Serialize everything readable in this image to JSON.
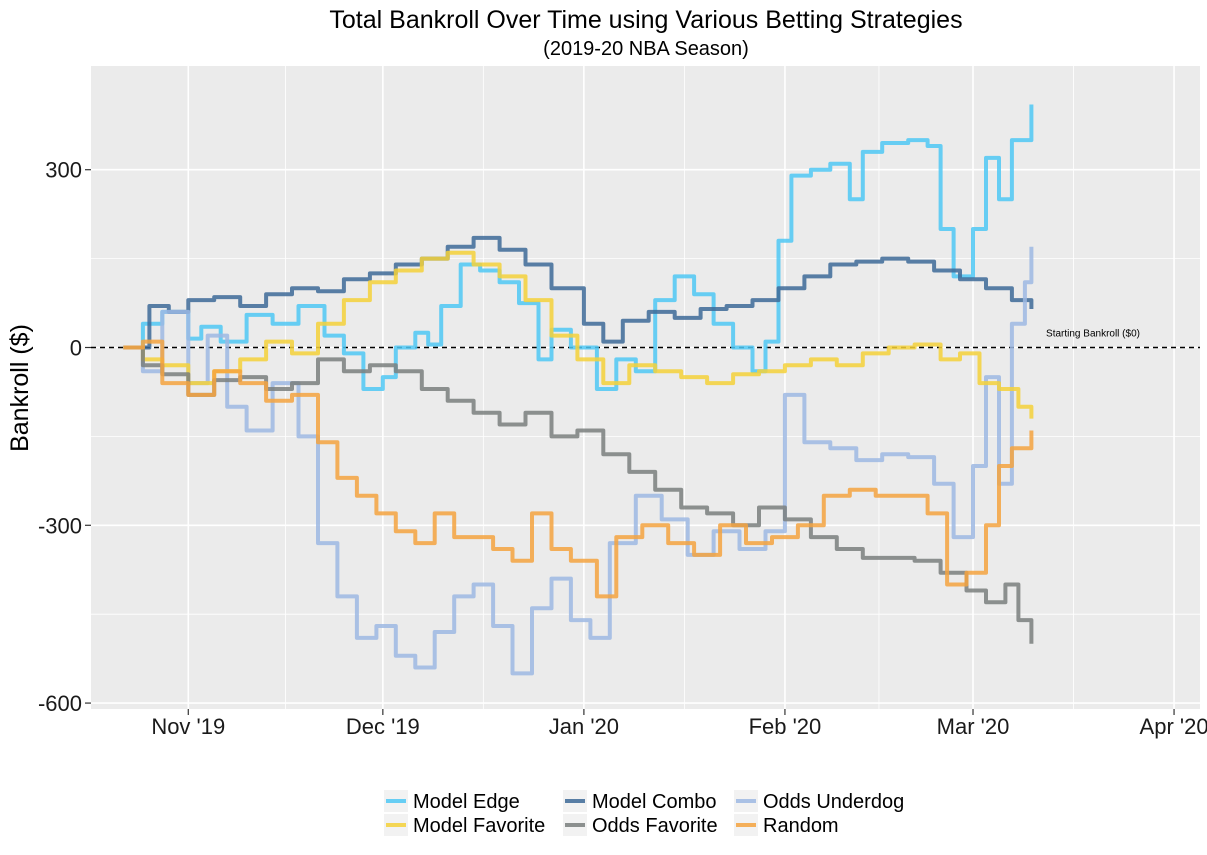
{
  "chart_data": {
    "type": "line",
    "title": "Total Bankroll Over Time using Various Betting Strategies",
    "subtitle": "(2019-20 NBA Season)",
    "xlabel": "",
    "ylabel": "Bankroll ($)",
    "x_range": [
      "2019-10-17",
      "2020-04-05"
    ],
    "ylim": [
      -610,
      475
    ],
    "x_ticks": [
      {
        "date": "2019-11-01",
        "label": "Nov '19"
      },
      {
        "date": "2019-12-01",
        "label": "Dec '19"
      },
      {
        "date": "2020-01-01",
        "label": "Jan '20"
      },
      {
        "date": "2020-02-01",
        "label": "Feb '20"
      },
      {
        "date": "2020-03-01",
        "label": "Mar '20"
      },
      {
        "date": "2020-04-01",
        "label": "Apr '20"
      }
    ],
    "y_ticks": [
      300,
      0,
      -300,
      -600
    ],
    "y_tick_labels": [
      "300",
      "0",
      "-300",
      "-600"
    ],
    "grid": true,
    "reference_line": {
      "y": 0,
      "label": "Starting Bankroll ($0)"
    },
    "legend_position": "bottom",
    "series": [
      {
        "name": "Model Edge",
        "color": "#4FC8F5",
        "points": [
          [
            "2019-10-22",
            0
          ],
          [
            "2019-10-25",
            40
          ],
          [
            "2019-10-28",
            60
          ],
          [
            "2019-11-01",
            15
          ],
          [
            "2019-11-03",
            35
          ],
          [
            "2019-11-06",
            10
          ],
          [
            "2019-11-10",
            55
          ],
          [
            "2019-11-14",
            40
          ],
          [
            "2019-11-18",
            70
          ],
          [
            "2019-11-22",
            20
          ],
          [
            "2019-11-25",
            -10
          ],
          [
            "2019-11-28",
            -70
          ],
          [
            "2019-12-01",
            -50
          ],
          [
            "2019-12-03",
            0
          ],
          [
            "2019-12-06",
            25
          ],
          [
            "2019-12-08",
            5
          ],
          [
            "2019-12-10",
            70
          ],
          [
            "2019-12-13",
            140
          ],
          [
            "2019-12-16",
            130
          ],
          [
            "2019-12-19",
            110
          ],
          [
            "2019-12-22",
            75
          ],
          [
            "2019-12-25",
            -20
          ],
          [
            "2019-12-27",
            30
          ],
          [
            "2019-12-30",
            0
          ],
          [
            "2020-01-03",
            -70
          ],
          [
            "2020-01-06",
            -20
          ],
          [
            "2020-01-09",
            -40
          ],
          [
            "2020-01-12",
            80
          ],
          [
            "2020-01-15",
            120
          ],
          [
            "2020-01-18",
            90
          ],
          [
            "2020-01-21",
            40
          ],
          [
            "2020-01-24",
            0
          ],
          [
            "2020-01-27",
            -40
          ],
          [
            "2020-01-29",
            10
          ],
          [
            "2020-01-31",
            180
          ],
          [
            "2020-02-02",
            290
          ],
          [
            "2020-02-05",
            300
          ],
          [
            "2020-02-08",
            310
          ],
          [
            "2020-02-11",
            250
          ],
          [
            "2020-02-13",
            330
          ],
          [
            "2020-02-16",
            345
          ],
          [
            "2020-02-20",
            350
          ],
          [
            "2020-02-23",
            340
          ],
          [
            "2020-02-25",
            200
          ],
          [
            "2020-02-27",
            120
          ],
          [
            "2020-03-01",
            200
          ],
          [
            "2020-03-03",
            320
          ],
          [
            "2020-03-05",
            250
          ],
          [
            "2020-03-07",
            350
          ],
          [
            "2020-03-10",
            410
          ]
        ]
      },
      {
        "name": "Model Combo",
        "color": "#3D6A98",
        "points": [
          [
            "2019-10-22",
            0
          ],
          [
            "2019-10-26",
            70
          ],
          [
            "2019-10-29",
            60
          ],
          [
            "2019-11-01",
            80
          ],
          [
            "2019-11-05",
            85
          ],
          [
            "2019-11-09",
            70
          ],
          [
            "2019-11-13",
            90
          ],
          [
            "2019-11-17",
            100
          ],
          [
            "2019-11-21",
            95
          ],
          [
            "2019-11-25",
            115
          ],
          [
            "2019-11-29",
            125
          ],
          [
            "2019-12-03",
            140
          ],
          [
            "2019-12-07",
            150
          ],
          [
            "2019-12-11",
            170
          ],
          [
            "2019-12-15",
            185
          ],
          [
            "2019-12-19",
            165
          ],
          [
            "2019-12-23",
            140
          ],
          [
            "2019-12-27",
            100
          ],
          [
            "2020-01-01",
            40
          ],
          [
            "2020-01-04",
            10
          ],
          [
            "2020-01-07",
            45
          ],
          [
            "2020-01-11",
            60
          ],
          [
            "2020-01-15",
            50
          ],
          [
            "2020-01-19",
            65
          ],
          [
            "2020-01-23",
            70
          ],
          [
            "2020-01-27",
            80
          ],
          [
            "2020-01-31",
            100
          ],
          [
            "2020-02-04",
            120
          ],
          [
            "2020-02-08",
            140
          ],
          [
            "2020-02-12",
            145
          ],
          [
            "2020-02-16",
            150
          ],
          [
            "2020-02-20",
            145
          ],
          [
            "2020-02-24",
            130
          ],
          [
            "2020-02-28",
            115
          ],
          [
            "2020-03-03",
            100
          ],
          [
            "2020-03-07",
            80
          ],
          [
            "2020-03-10",
            65
          ]
        ]
      },
      {
        "name": "Odds Underdog",
        "color": "#9DB9E3",
        "points": [
          [
            "2019-10-22",
            0
          ],
          [
            "2019-10-25",
            -40
          ],
          [
            "2019-10-28",
            60
          ],
          [
            "2019-11-01",
            -60
          ],
          [
            "2019-11-04",
            20
          ],
          [
            "2019-11-07",
            -100
          ],
          [
            "2019-11-10",
            -140
          ],
          [
            "2019-11-14",
            -60
          ],
          [
            "2019-11-18",
            -150
          ],
          [
            "2019-11-21",
            -330
          ],
          [
            "2019-11-24",
            -420
          ],
          [
            "2019-11-27",
            -490
          ],
          [
            "2019-11-30",
            -470
          ],
          [
            "2019-12-03",
            -520
          ],
          [
            "2019-12-06",
            -540
          ],
          [
            "2019-12-09",
            -480
          ],
          [
            "2019-12-12",
            -420
          ],
          [
            "2019-12-15",
            -400
          ],
          [
            "2019-12-18",
            -470
          ],
          [
            "2019-12-21",
            -550
          ],
          [
            "2019-12-24",
            -440
          ],
          [
            "2019-12-27",
            -390
          ],
          [
            "2019-12-30",
            -460
          ],
          [
            "2020-01-02",
            -490
          ],
          [
            "2020-01-05",
            -330
          ],
          [
            "2020-01-09",
            -250
          ],
          [
            "2020-01-13",
            -290
          ],
          [
            "2020-01-17",
            -350
          ],
          [
            "2020-01-21",
            -310
          ],
          [
            "2020-01-25",
            -340
          ],
          [
            "2020-01-29",
            -310
          ],
          [
            "2020-02-01",
            -80
          ],
          [
            "2020-02-04",
            -160
          ],
          [
            "2020-02-08",
            -170
          ],
          [
            "2020-02-12",
            -190
          ],
          [
            "2020-02-16",
            -180
          ],
          [
            "2020-02-20",
            -185
          ],
          [
            "2020-02-24",
            -230
          ],
          [
            "2020-02-27",
            -320
          ],
          [
            "2020-03-01",
            -200
          ],
          [
            "2020-03-03",
            -50
          ],
          [
            "2020-03-05",
            -230
          ],
          [
            "2020-03-07",
            40
          ],
          [
            "2020-03-09",
            110
          ],
          [
            "2020-03-10",
            170
          ]
        ]
      },
      {
        "name": "Model Favorite",
        "color": "#F5D13A",
        "points": [
          [
            "2019-10-22",
            0
          ],
          [
            "2019-10-25",
            -20
          ],
          [
            "2019-10-28",
            -30
          ],
          [
            "2019-11-01",
            -60
          ],
          [
            "2019-11-05",
            -40
          ],
          [
            "2019-11-09",
            -20
          ],
          [
            "2019-11-13",
            10
          ],
          [
            "2019-11-17",
            -10
          ],
          [
            "2019-11-21",
            40
          ],
          [
            "2019-11-25",
            80
          ],
          [
            "2019-11-29",
            110
          ],
          [
            "2019-12-03",
            130
          ],
          [
            "2019-12-07",
            150
          ],
          [
            "2019-12-11",
            160
          ],
          [
            "2019-12-15",
            140
          ],
          [
            "2019-12-19",
            120
          ],
          [
            "2019-12-23",
            80
          ],
          [
            "2019-12-27",
            20
          ],
          [
            "2019-12-31",
            -20
          ],
          [
            "2020-01-04",
            -60
          ],
          [
            "2020-01-08",
            -30
          ],
          [
            "2020-01-12",
            -40
          ],
          [
            "2020-01-16",
            -50
          ],
          [
            "2020-01-20",
            -60
          ],
          [
            "2020-01-24",
            -45
          ],
          [
            "2020-01-28",
            -40
          ],
          [
            "2020-02-01",
            -30
          ],
          [
            "2020-02-05",
            -20
          ],
          [
            "2020-02-09",
            -30
          ],
          [
            "2020-02-13",
            -10
          ],
          [
            "2020-02-17",
            0
          ],
          [
            "2020-02-21",
            5
          ],
          [
            "2020-02-25",
            -20
          ],
          [
            "2020-02-28",
            -10
          ],
          [
            "2020-03-02",
            -60
          ],
          [
            "2020-03-05",
            -70
          ],
          [
            "2020-03-08",
            -100
          ],
          [
            "2020-03-10",
            -120
          ]
        ]
      },
      {
        "name": "Odds Favorite",
        "color": "#7A7F7E",
        "points": [
          [
            "2019-10-22",
            0
          ],
          [
            "2019-10-25",
            -30
          ],
          [
            "2019-10-28",
            -45
          ],
          [
            "2019-11-01",
            -80
          ],
          [
            "2019-11-05",
            -55
          ],
          [
            "2019-11-09",
            -50
          ],
          [
            "2019-11-13",
            -70
          ],
          [
            "2019-11-17",
            -60
          ],
          [
            "2019-11-21",
            -20
          ],
          [
            "2019-11-25",
            -40
          ],
          [
            "2019-11-29",
            -30
          ],
          [
            "2019-12-03",
            -40
          ],
          [
            "2019-12-07",
            -70
          ],
          [
            "2019-12-11",
            -90
          ],
          [
            "2019-12-15",
            -110
          ],
          [
            "2019-12-19",
            -130
          ],
          [
            "2019-12-23",
            -110
          ],
          [
            "2019-12-27",
            -150
          ],
          [
            "2019-12-31",
            -140
          ],
          [
            "2020-01-04",
            -180
          ],
          [
            "2020-01-08",
            -210
          ],
          [
            "2020-01-12",
            -240
          ],
          [
            "2020-01-16",
            -270
          ],
          [
            "2020-01-20",
            -280
          ],
          [
            "2020-01-24",
            -300
          ],
          [
            "2020-01-28",
            -270
          ],
          [
            "2020-02-01",
            -290
          ],
          [
            "2020-02-05",
            -320
          ],
          [
            "2020-02-09",
            -340
          ],
          [
            "2020-02-13",
            -355
          ],
          [
            "2020-02-17",
            -355
          ],
          [
            "2020-02-21",
            -360
          ],
          [
            "2020-02-25",
            -380
          ],
          [
            "2020-02-29",
            -410
          ],
          [
            "2020-03-03",
            -430
          ],
          [
            "2020-03-06",
            -400
          ],
          [
            "2020-03-08",
            -460
          ],
          [
            "2020-03-10",
            -500
          ]
        ]
      },
      {
        "name": "Random",
        "color": "#F5A33F",
        "points": [
          [
            "2019-10-22",
            0
          ],
          [
            "2019-10-25",
            10
          ],
          [
            "2019-10-28",
            -60
          ],
          [
            "2019-11-01",
            -80
          ],
          [
            "2019-11-05",
            -40
          ],
          [
            "2019-11-09",
            -60
          ],
          [
            "2019-11-13",
            -90
          ],
          [
            "2019-11-17",
            -80
          ],
          [
            "2019-11-21",
            -160
          ],
          [
            "2019-11-24",
            -220
          ],
          [
            "2019-11-27",
            -250
          ],
          [
            "2019-11-30",
            -280
          ],
          [
            "2019-12-03",
            -310
          ],
          [
            "2019-12-06",
            -330
          ],
          [
            "2019-12-09",
            -280
          ],
          [
            "2019-12-12",
            -320
          ],
          [
            "2019-12-15",
            -320
          ],
          [
            "2019-12-18",
            -340
          ],
          [
            "2019-12-21",
            -360
          ],
          [
            "2019-12-24",
            -280
          ],
          [
            "2019-12-27",
            -340
          ],
          [
            "2019-12-30",
            -360
          ],
          [
            "2020-01-03",
            -420
          ],
          [
            "2020-01-06",
            -320
          ],
          [
            "2020-01-10",
            -300
          ],
          [
            "2020-01-14",
            -330
          ],
          [
            "2020-01-18",
            -350
          ],
          [
            "2020-01-22",
            -300
          ],
          [
            "2020-01-26",
            -330
          ],
          [
            "2020-01-30",
            -320
          ],
          [
            "2020-02-03",
            -300
          ],
          [
            "2020-02-07",
            -250
          ],
          [
            "2020-02-11",
            -240
          ],
          [
            "2020-02-15",
            -250
          ],
          [
            "2020-02-19",
            -250
          ],
          [
            "2020-02-23",
            -280
          ],
          [
            "2020-02-26",
            -400
          ],
          [
            "2020-02-29",
            -380
          ],
          [
            "2020-03-03",
            -300
          ],
          [
            "2020-03-05",
            -200
          ],
          [
            "2020-03-07",
            -170
          ],
          [
            "2020-03-10",
            -140
          ]
        ]
      }
    ],
    "legend": [
      {
        "name": "Model Edge",
        "color": "#4FC8F5"
      },
      {
        "name": "Model Favorite",
        "color": "#F5D13A"
      },
      {
        "name": "Model Combo",
        "color": "#3D6A98"
      },
      {
        "name": "Odds Favorite",
        "color": "#7A7F7E"
      },
      {
        "name": "Odds Underdog",
        "color": "#9DB9E3"
      },
      {
        "name": "Random",
        "color": "#F5A33F"
      }
    ]
  }
}
